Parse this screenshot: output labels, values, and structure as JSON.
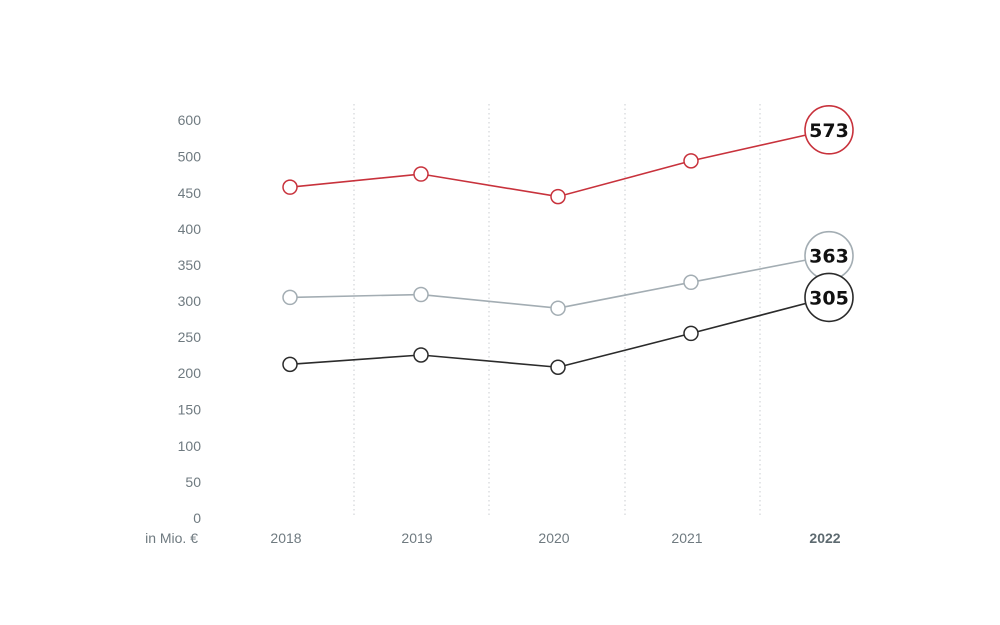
{
  "chart_data": {
    "type": "line",
    "unit_label": "in Mio. €",
    "x": [
      "2018",
      "2019",
      "2020",
      "2021",
      "2022"
    ],
    "highlight_x": "2022",
    "y_ticks": [
      0,
      50,
      100,
      150,
      200,
      250,
      300,
      350,
      400,
      450,
      500,
      600
    ],
    "grid": "vertical-dotted",
    "series": [
      {
        "color": "#c8323c",
        "values": [
          458,
          476,
          445,
          494,
          573
        ],
        "end_label": "573"
      },
      {
        "color": "#a3adb3",
        "values": [
          305,
          309,
          290,
          326,
          363
        ],
        "end_label": "363"
      },
      {
        "color": "#2b2b2b",
        "values": [
          212,
          225,
          208,
          255,
          305
        ],
        "end_label": "305"
      }
    ]
  }
}
